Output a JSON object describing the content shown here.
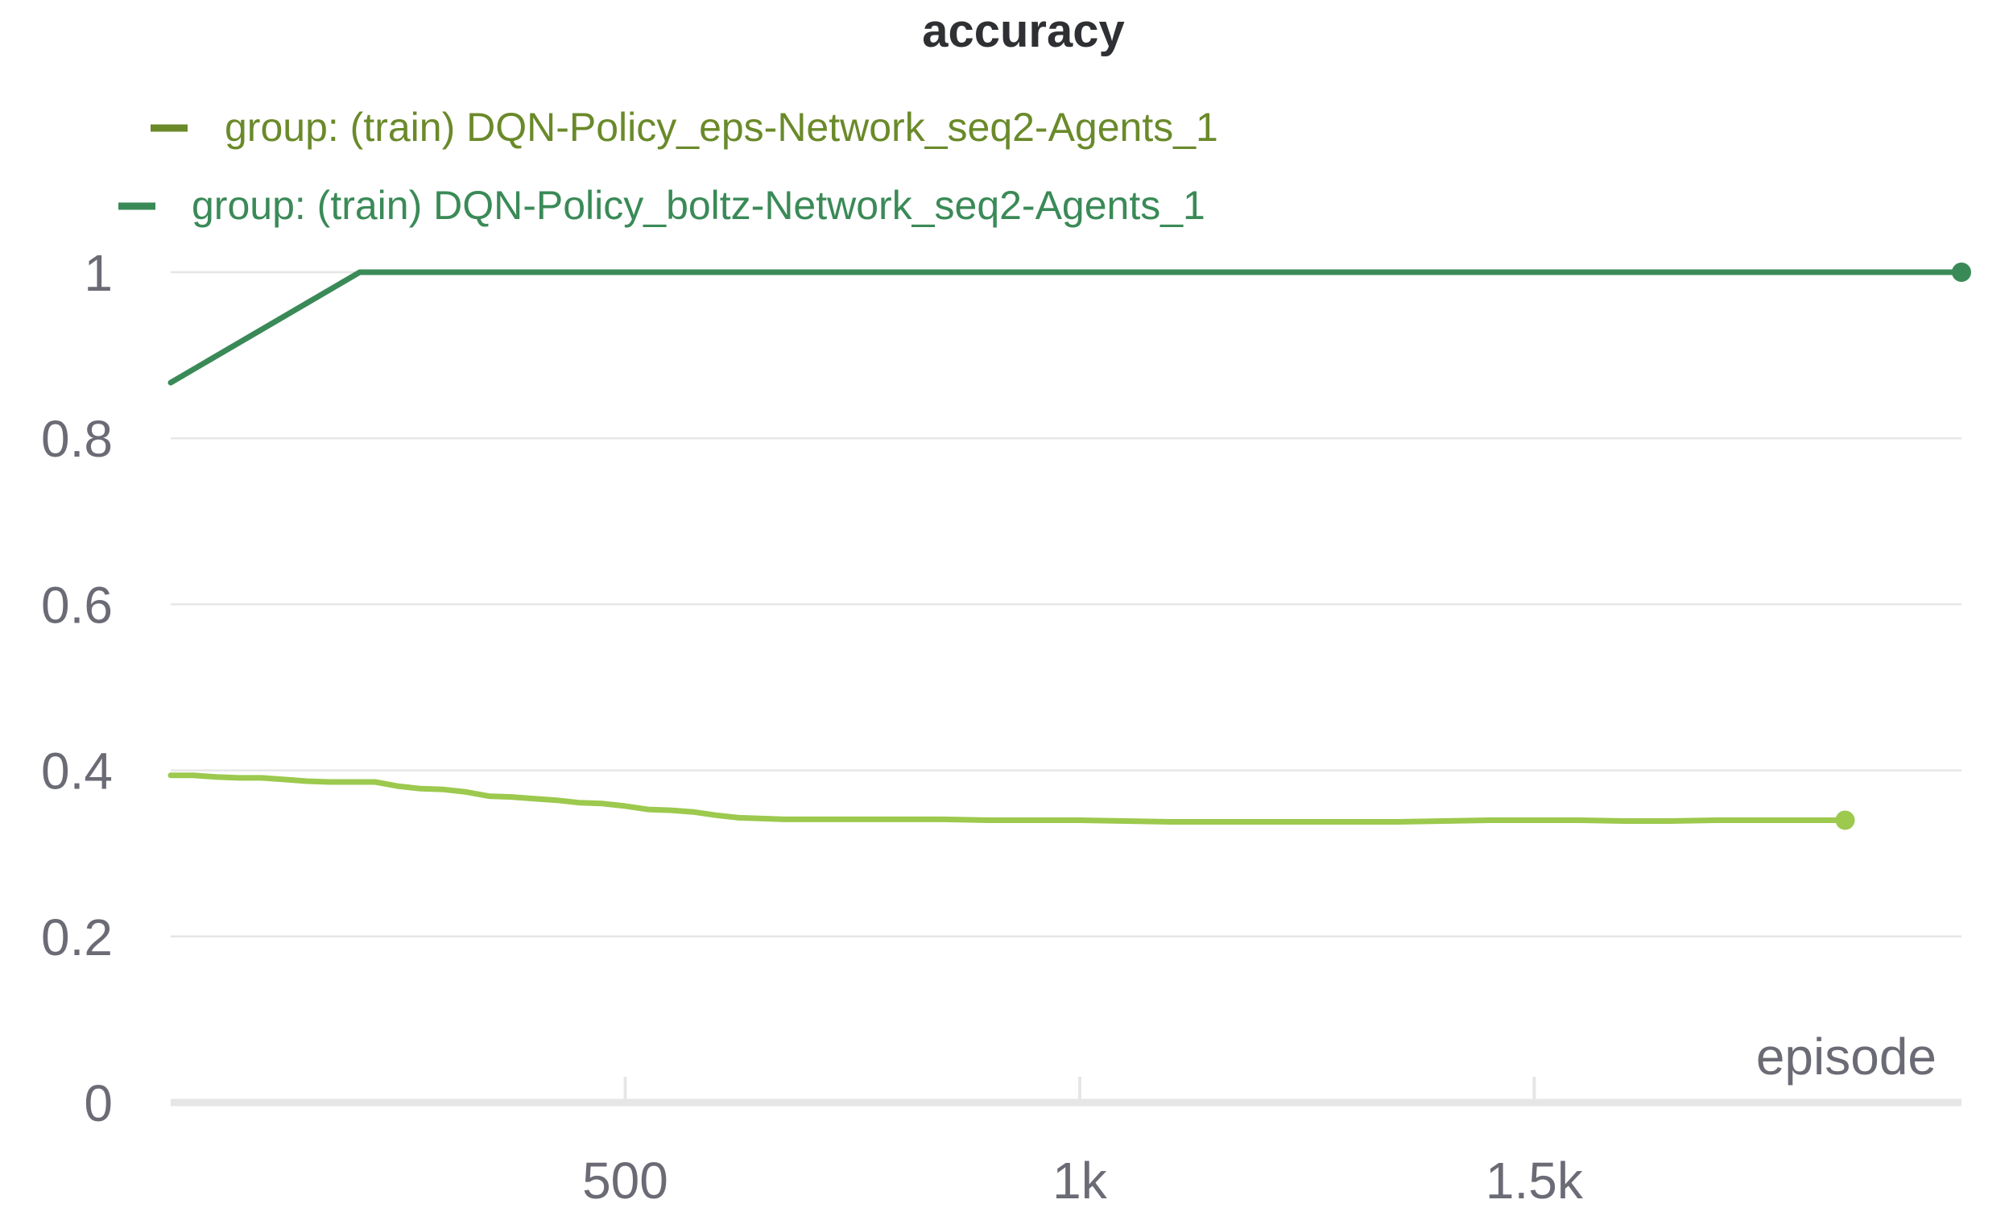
{
  "chart_data": {
    "type": "line",
    "title": "accuracy",
    "xlabel": "episode",
    "ylabel": "",
    "xlim": [
      0,
      1970
    ],
    "ylim": [
      0,
      1
    ],
    "x_ticks": [
      {
        "value": 500,
        "label": "500"
      },
      {
        "value": 1000,
        "label": "1k"
      },
      {
        "value": 1500,
        "label": "1.5k"
      }
    ],
    "y_ticks": [
      {
        "value": 0,
        "label": "0"
      },
      {
        "value": 0.2,
        "label": "0.2"
      },
      {
        "value": 0.4,
        "label": "0.4"
      },
      {
        "value": 0.6,
        "label": "0.6"
      },
      {
        "value": 0.8,
        "label": "0.8"
      },
      {
        "value": 1,
        "label": "1"
      }
    ],
    "grid": true,
    "legend_position": "top-left",
    "series": [
      {
        "name": "group: (train) DQN-Policy_eps-Network_seq2-Agents_1",
        "legend_color": "#6a8a2a",
        "color": "#9cc94e",
        "x": [
          0,
          25,
          50,
          75,
          100,
          125,
          150,
          175,
          200,
          225,
          250,
          275,
          300,
          325,
          350,
          375,
          400,
          425,
          450,
          475,
          500,
          525,
          550,
          575,
          600,
          625,
          650,
          675,
          700,
          725,
          750,
          800,
          850,
          900,
          950,
          1000,
          1050,
          1100,
          1150,
          1200,
          1250,
          1300,
          1350,
          1400,
          1450,
          1500,
          1550,
          1600,
          1650,
          1700,
          1750,
          1800,
          1842
        ],
        "y": [
          0.394,
          0.394,
          0.392,
          0.391,
          0.391,
          0.389,
          0.387,
          0.386,
          0.386,
          0.386,
          0.381,
          0.378,
          0.377,
          0.374,
          0.369,
          0.368,
          0.366,
          0.364,
          0.361,
          0.36,
          0.357,
          0.353,
          0.352,
          0.35,
          0.346,
          0.343,
          0.342,
          0.341,
          0.341,
          0.341,
          0.341,
          0.341,
          0.341,
          0.34,
          0.34,
          0.34,
          0.339,
          0.338,
          0.338,
          0.338,
          0.338,
          0.338,
          0.338,
          0.339,
          0.34,
          0.34,
          0.34,
          0.339,
          0.339,
          0.34,
          0.34,
          0.34,
          0.34
        ]
      },
      {
        "name": "group: (train) DQN-Policy_boltz-Network_seq2-Agents_1",
        "legend_color": "#3a8a57",
        "color": "#3a8a57",
        "x": [
          0,
          208,
          500,
          1000,
          1500,
          1970
        ],
        "y": [
          0.867,
          1,
          1,
          1,
          1,
          1
        ]
      }
    ]
  }
}
